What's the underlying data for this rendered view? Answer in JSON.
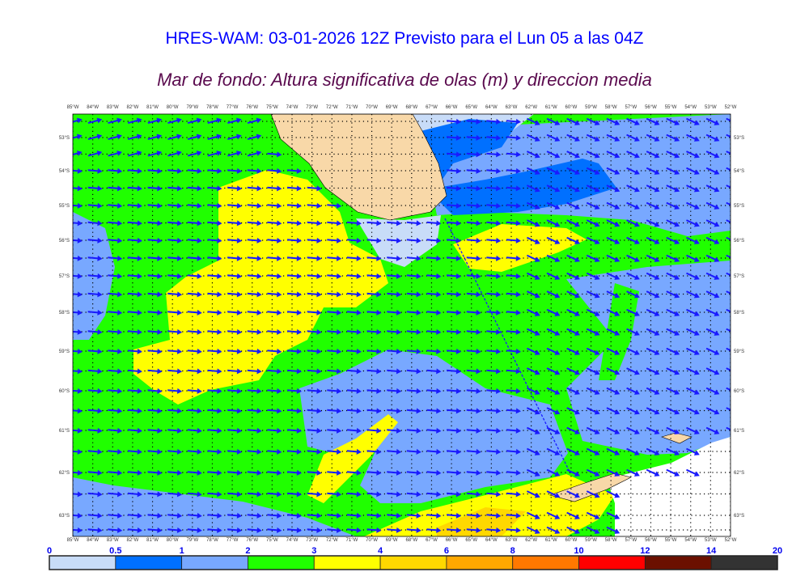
{
  "header": {
    "title": "HRES-WAM: 03-01-2026 12Z Previsto para el Lun 05 a las 04Z",
    "subtitle": "Mar de fondo: Altura significativa de olas (m) y direccion media"
  },
  "map": {
    "lon_labels": [
      "85°W",
      "84°W",
      "83°W",
      "82°W",
      "81°W",
      "80°W",
      "79°W",
      "78°W",
      "77°W",
      "76°W",
      "75°W",
      "74°W",
      "73°W",
      "72°W",
      "71°W",
      "70°W",
      "69°W",
      "68°W",
      "67°W",
      "66°W",
      "65°W",
      "64°W",
      "63°W",
      "62°W",
      "61°W",
      "60°W",
      "59°W",
      "58°W",
      "57°W",
      "56°W",
      "55°W",
      "54°W",
      "53°W",
      "52°W"
    ],
    "lat_labels": [
      "53°S",
      "54°S",
      "55°S",
      "56°S",
      "57°S",
      "58°S",
      "59°S",
      "60°S",
      "61°S",
      "62°S",
      "63°S"
    ],
    "colors": {
      "land": "#f8d8a8",
      "arrow": "#1a1aff",
      "no_data": "#ffffff"
    }
  },
  "legend": {
    "ticks": [
      "0",
      "0.5",
      "1",
      "2",
      "3",
      "4",
      "6",
      "8",
      "10",
      "12",
      "14",
      "20"
    ],
    "colors": [
      "#c8dcf8",
      "#0070ff",
      "#78a8ff",
      "#20ff00",
      "#ffff00",
      "#ffd800",
      "#ffa800",
      "#ff7800",
      "#ff0000",
      "#6b1000",
      "#333333"
    ]
  }
}
